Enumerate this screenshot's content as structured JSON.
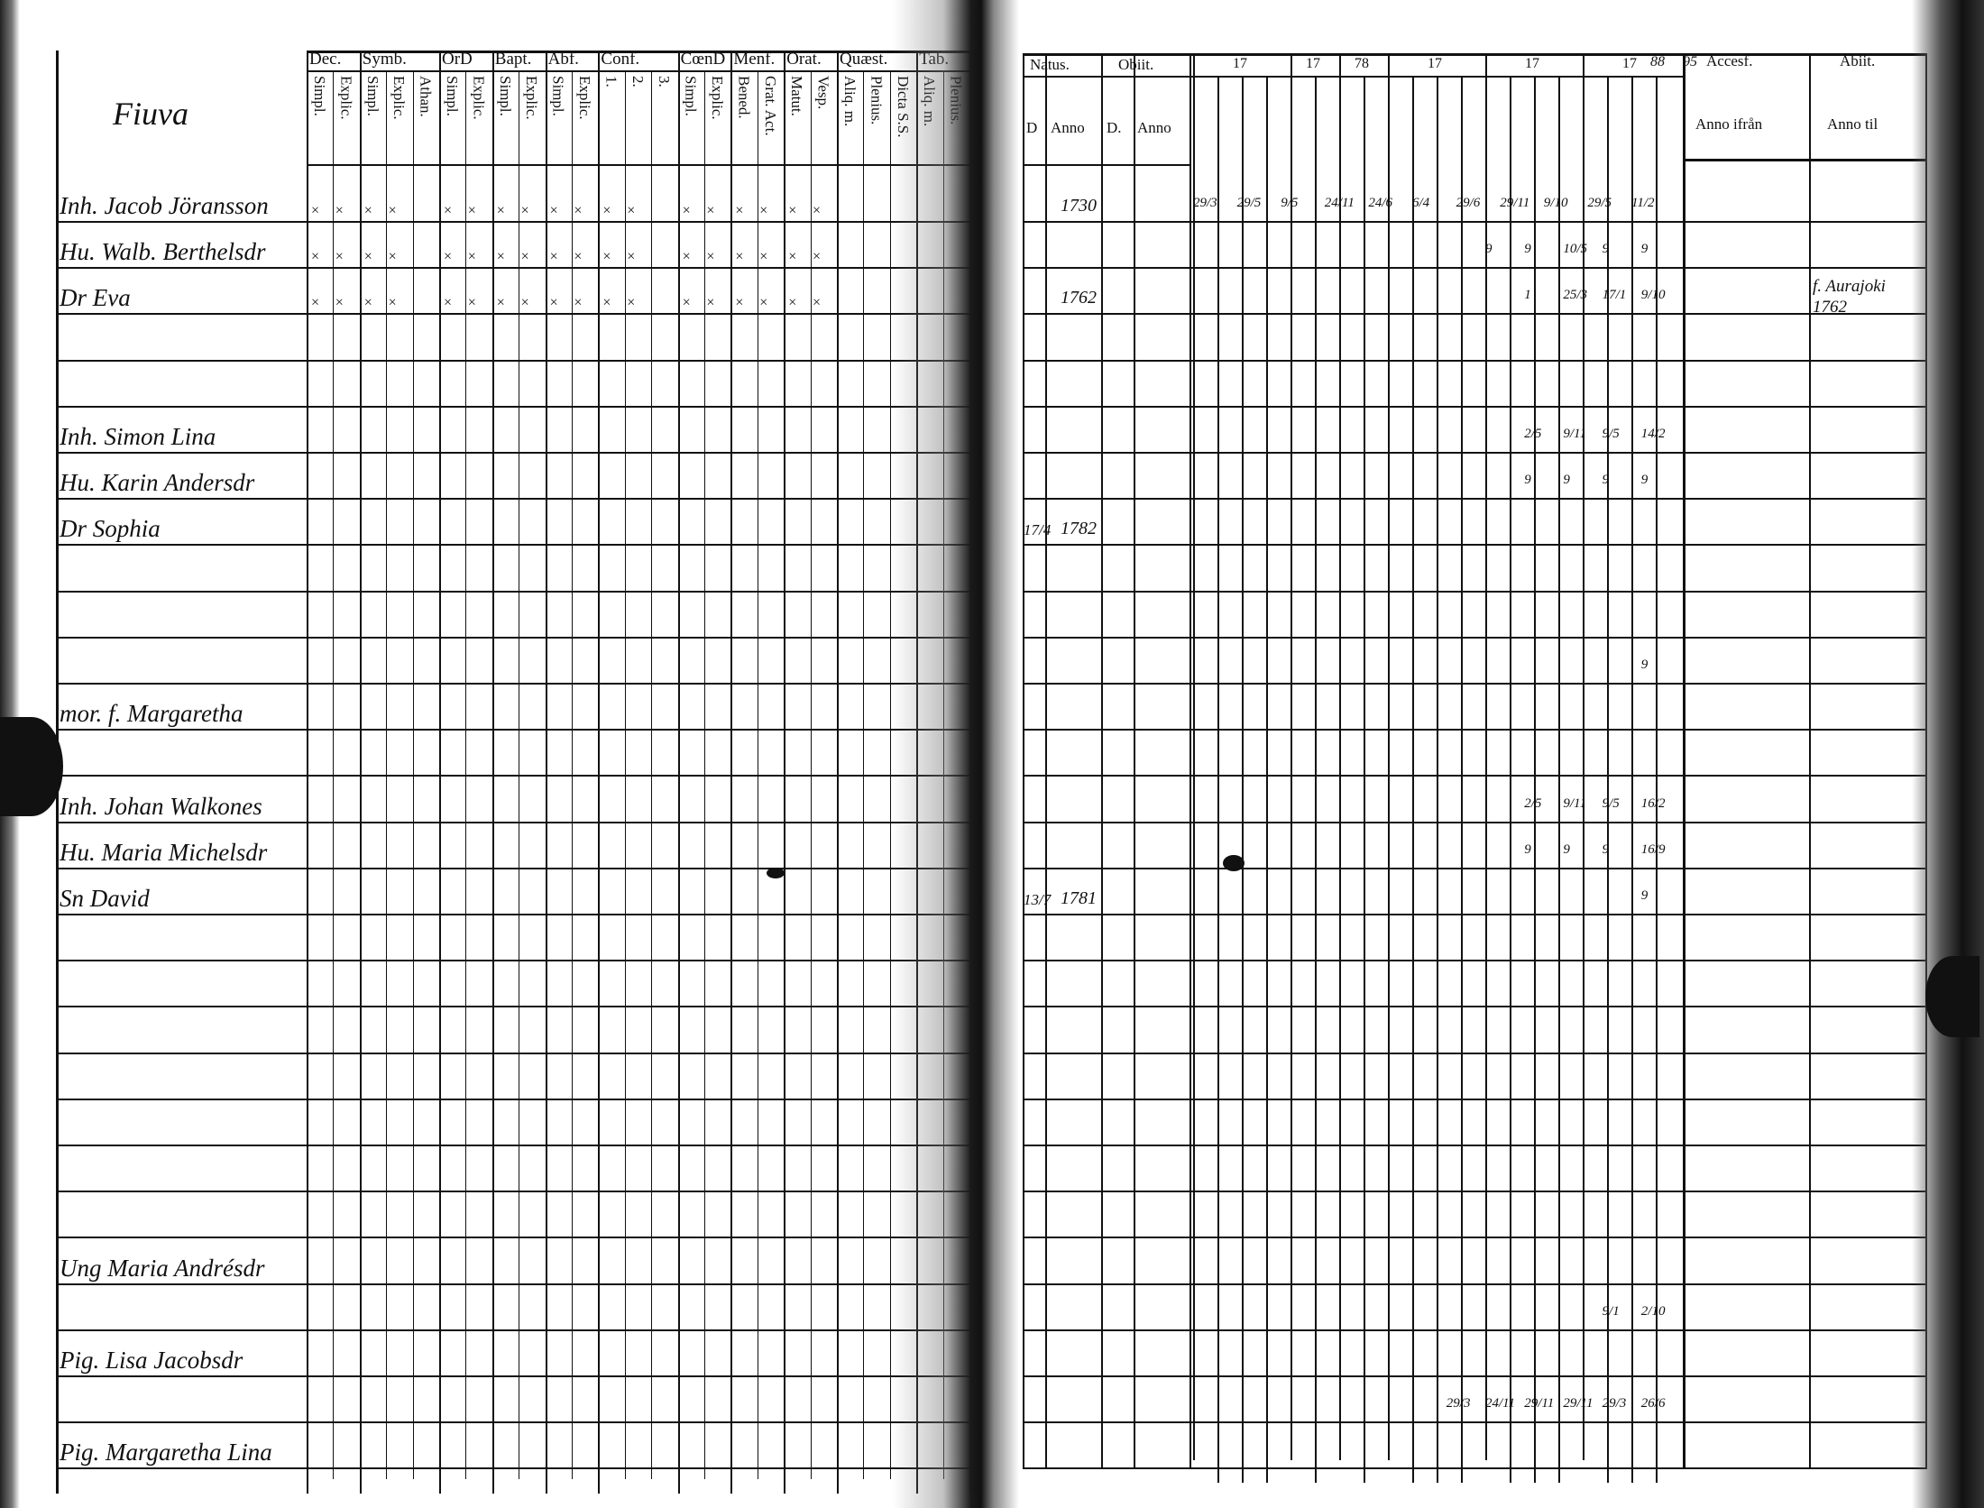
{
  "left_page": {
    "village_heading": "Fiuva",
    "column_groups": [
      {
        "label": "Dec.",
        "sub": [
          "Simpl.",
          "Explic."
        ]
      },
      {
        "label": "Symb.",
        "sub": [
          "Simpl.",
          "Explic.",
          "Athan."
        ]
      },
      {
        "label": "OrD",
        "sub": [
          "Simpl.",
          "Explic."
        ]
      },
      {
        "label": "Bapt.",
        "sub": [
          "Simpl.",
          "Explic."
        ]
      },
      {
        "label": "Abf.",
        "sub": [
          "Simpl.",
          "Explic."
        ]
      },
      {
        "label": "Conf.",
        "sub": [
          "1.",
          "2.",
          "3."
        ]
      },
      {
        "label": "CœnD",
        "sub": [
          "Simpl.",
          "Explic."
        ]
      },
      {
        "label": "Menf.",
        "sub": [
          "Bened.",
          "Grat. Act."
        ]
      },
      {
        "label": "Orat.",
        "sub": [
          "Matut.",
          "Vesp."
        ]
      },
      {
        "label": "Quæst.",
        "sub": [
          "Aliq. m.",
          "Plenius.",
          "Dicta S.S."
        ]
      },
      {
        "label": "Tab.",
        "sub": [
          "Aliq. m.",
          "Plenius."
        ]
      }
    ],
    "mark_glyph": "× ×"
  },
  "right_page": {
    "natus": "Natus.",
    "obiit": "Obiit.",
    "sub_headers": [
      "D",
      "Anno",
      "D.",
      "Anno"
    ],
    "year_groups": [
      "17",
      "17",
      "78",
      "17",
      "17",
      "17"
    ],
    "year_extra": [
      "88",
      "95"
    ],
    "accessus": "Accesf.",
    "abiit": "Abiit.",
    "accessus_sub": "Anno ifrån",
    "abiit_sub": "Anno til"
  },
  "rows": [
    {
      "name": "Inh. Jacob Jöransson",
      "marks": true,
      "natus_d": "",
      "natus_anno": "1730",
      "abiit": "",
      "notes": [
        "29/3",
        "29/5",
        "9/5",
        "24/11",
        "24/6",
        "6/4",
        "29/6",
        "29/11",
        "9/10",
        "29/5",
        "11/2"
      ]
    },
    {
      "name": "Hu. Walb. Berthelsdr",
      "marks": true,
      "natus_d": "",
      "natus_anno": "",
      "abiit": "",
      "notes": [
        "9",
        "9",
        "10/5",
        "9",
        "9"
      ]
    },
    {
      "name": "Dr Eva",
      "marks": true,
      "natus_d": "",
      "natus_anno": "1762",
      "abiit": "f. Aurajoki 1762",
      "notes": [
        "1",
        "25/3",
        "17/1",
        "9/10"
      ]
    },
    {
      "name": "",
      "marks": false,
      "natus_d": "",
      "natus_anno": "",
      "abiit": "",
      "notes": []
    },
    {
      "name": "",
      "marks": false,
      "natus_d": "",
      "natus_anno": "",
      "abiit": "",
      "notes": []
    },
    {
      "name": "Inh. Simon Lina",
      "marks": false,
      "natus_d": "",
      "natus_anno": "",
      "abiit": "",
      "notes": [
        "2/5",
        "9/11",
        "9/5",
        "14/2"
      ]
    },
    {
      "name": "Hu. Karin Andersdr",
      "marks": false,
      "natus_d": "",
      "natus_anno": "",
      "abiit": "",
      "notes": [
        "9",
        "9",
        "9",
        "9"
      ]
    },
    {
      "name": "Dr Sophia",
      "marks": false,
      "natus_d": "17/4",
      "natus_anno": "1782",
      "abiit": "",
      "notes": []
    },
    {
      "name": "",
      "marks": false,
      "natus_d": "",
      "natus_anno": "",
      "abiit": "",
      "notes": []
    },
    {
      "name": "",
      "marks": false,
      "natus_d": "",
      "natus_anno": "",
      "abiit": "",
      "notes": []
    },
    {
      "name": "",
      "marks": false,
      "natus_d": "",
      "natus_anno": "",
      "abiit": "",
      "notes": [
        "9"
      ]
    },
    {
      "name": "mor. f. Margaretha",
      "marks": false,
      "natus_d": "",
      "natus_anno": "",
      "abiit": "",
      "notes": []
    },
    {
      "name": "",
      "marks": false,
      "natus_d": "",
      "natus_anno": "",
      "abiit": "",
      "notes": []
    },
    {
      "name": "Inh. Johan Walkones",
      "marks": false,
      "natus_d": "",
      "natus_anno": "",
      "abiit": "",
      "notes": [
        "2/5",
        "9/11",
        "9/5",
        "16/2"
      ]
    },
    {
      "name": "Hu. Maria Michelsdr",
      "marks": false,
      "natus_d": "",
      "natus_anno": "",
      "abiit": "",
      "notes": [
        "9",
        "9",
        "9",
        "16/9"
      ]
    },
    {
      "name": "Sn David",
      "marks": false,
      "natus_d": "13/7",
      "natus_anno": "1781",
      "abiit": "",
      "notes": [
        "9"
      ]
    },
    {
      "name": "",
      "marks": false,
      "natus_d": "",
      "natus_anno": "",
      "abiit": "",
      "notes": []
    },
    {
      "name": "",
      "marks": false,
      "natus_d": "",
      "natus_anno": "",
      "abiit": "",
      "notes": []
    },
    {
      "name": "",
      "marks": false,
      "natus_d": "",
      "natus_anno": "",
      "abiit": "",
      "notes": []
    },
    {
      "name": "",
      "marks": false,
      "natus_d": "",
      "natus_anno": "",
      "abiit": "",
      "notes": []
    },
    {
      "name": "",
      "marks": false,
      "natus_d": "",
      "natus_anno": "",
      "abiit": "",
      "notes": []
    },
    {
      "name": "",
      "marks": false,
      "natus_d": "",
      "natus_anno": "",
      "abiit": "",
      "notes": []
    },
    {
      "name": "",
      "marks": false,
      "natus_d": "",
      "natus_anno": "",
      "abiit": "",
      "notes": []
    },
    {
      "name": "Ung Maria Andrésdr",
      "marks": false,
      "natus_d": "",
      "natus_anno": "",
      "abiit": "",
      "notes": []
    },
    {
      "name": "",
      "marks": false,
      "natus_d": "",
      "natus_anno": "",
      "abiit": "",
      "notes": [
        "9/1",
        "2/10"
      ]
    },
    {
      "name": "Pig. Lisa Jacobsdr",
      "marks": false,
      "natus_d": "",
      "natus_anno": "",
      "abiit": "",
      "notes": []
    },
    {
      "name": "",
      "marks": false,
      "natus_d": "",
      "natus_anno": "",
      "abiit": "",
      "notes": [
        "29/3",
        "24/11",
        "29/11",
        "29/11",
        "29/3",
        "26/6"
      ]
    },
    {
      "name": "Pig. Margaretha Lina",
      "marks": false,
      "natus_d": "",
      "natus_anno": "",
      "abiit": "",
      "notes": []
    }
  ]
}
